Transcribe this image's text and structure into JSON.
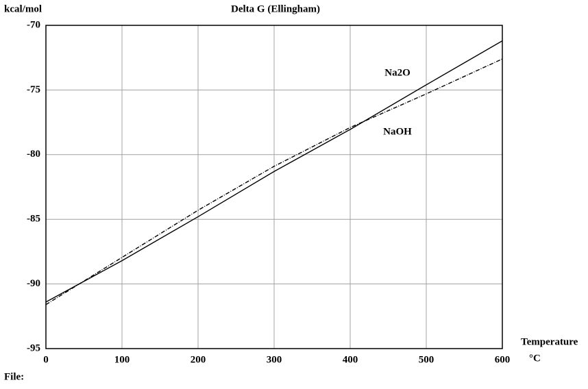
{
  "chart_data": {
    "type": "line",
    "title": "Delta G (Ellingham)",
    "y_label": "kcal/mol",
    "x_label": "Temperature",
    "x_unit": "°C",
    "footer": "File:",
    "x": [
      0,
      100,
      200,
      300,
      400,
      500,
      600
    ],
    "series": [
      {
        "name": "Na2O",
        "color": "#000000",
        "style": "solid",
        "values": [
          -91.4,
          -88.2,
          -84.8,
          -81.3,
          -78.05,
          -74.6,
          -71.2
        ]
      },
      {
        "name": "NaOH",
        "color": "#000000",
        "style": "dashdot",
        "values": [
          -91.6,
          -87.95,
          -84.3,
          -80.9,
          -77.9,
          -75.3,
          -72.6
        ]
      }
    ],
    "xlim": [
      0,
      600
    ],
    "ylim": [
      -95,
      -70
    ],
    "xticks": [
      0,
      100,
      200,
      300,
      400,
      500,
      600
    ],
    "yticks": [
      -95,
      -90,
      -85,
      -80,
      -75,
      -70
    ],
    "grid": true
  }
}
